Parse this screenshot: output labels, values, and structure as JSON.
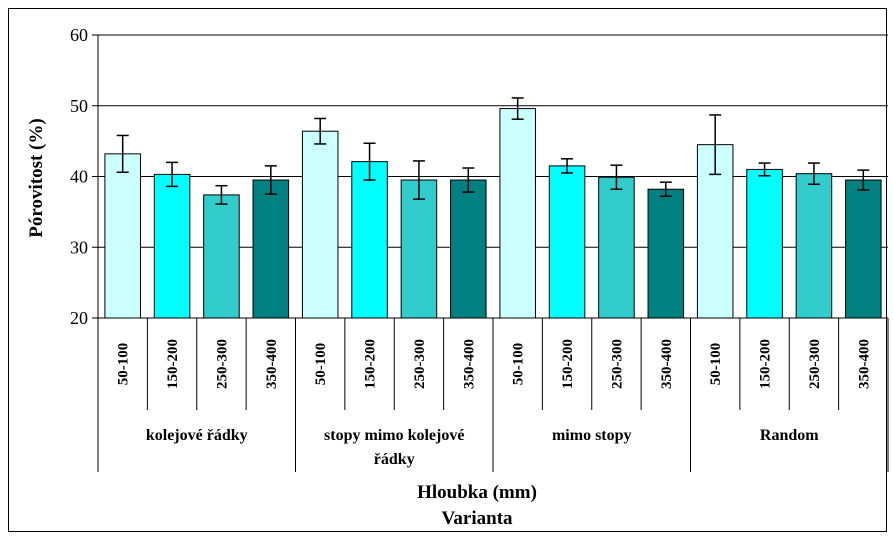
{
  "chart_data": {
    "type": "bar",
    "ylabel": "Pórovitost (%)",
    "xlabel": "Hloubka (mm)",
    "xlabel2": "Varianta",
    "ylim": [
      20,
      60
    ],
    "yticks": [
      20,
      30,
      40,
      50,
      60
    ],
    "grid": true,
    "legend": "none",
    "groups": [
      {
        "name": "kolejové řádky",
        "name_lines": [
          "kolejové řádky"
        ]
      },
      {
        "name": "stopy mimo kolejové řádky",
        "name_lines": [
          "stopy mimo kolejové",
          "řádky"
        ]
      },
      {
        "name": "mimo stopy",
        "name_lines": [
          "mimo stopy"
        ]
      },
      {
        "name": "Random",
        "name_lines": [
          "Random"
        ]
      }
    ],
    "depths": [
      "50-100",
      "150-200",
      "250-300",
      "350-400"
    ],
    "colors": [
      "#ccffff",
      "#00ffff",
      "#33cccc",
      "#008080"
    ],
    "values": [
      [
        43.2,
        40.3,
        37.4,
        39.5
      ],
      [
        46.4,
        42.1,
        39.5,
        39.5
      ],
      [
        49.6,
        41.5,
        39.9,
        38.2
      ],
      [
        44.5,
        41.0,
        40.4,
        39.5
      ]
    ],
    "errors": [
      [
        2.6,
        1.7,
        1.3,
        2.0
      ],
      [
        1.8,
        2.6,
        2.7,
        1.7
      ],
      [
        1.5,
        1.0,
        1.7,
        1.0
      ],
      [
        4.2,
        0.9,
        1.5,
        1.4
      ]
    ]
  }
}
